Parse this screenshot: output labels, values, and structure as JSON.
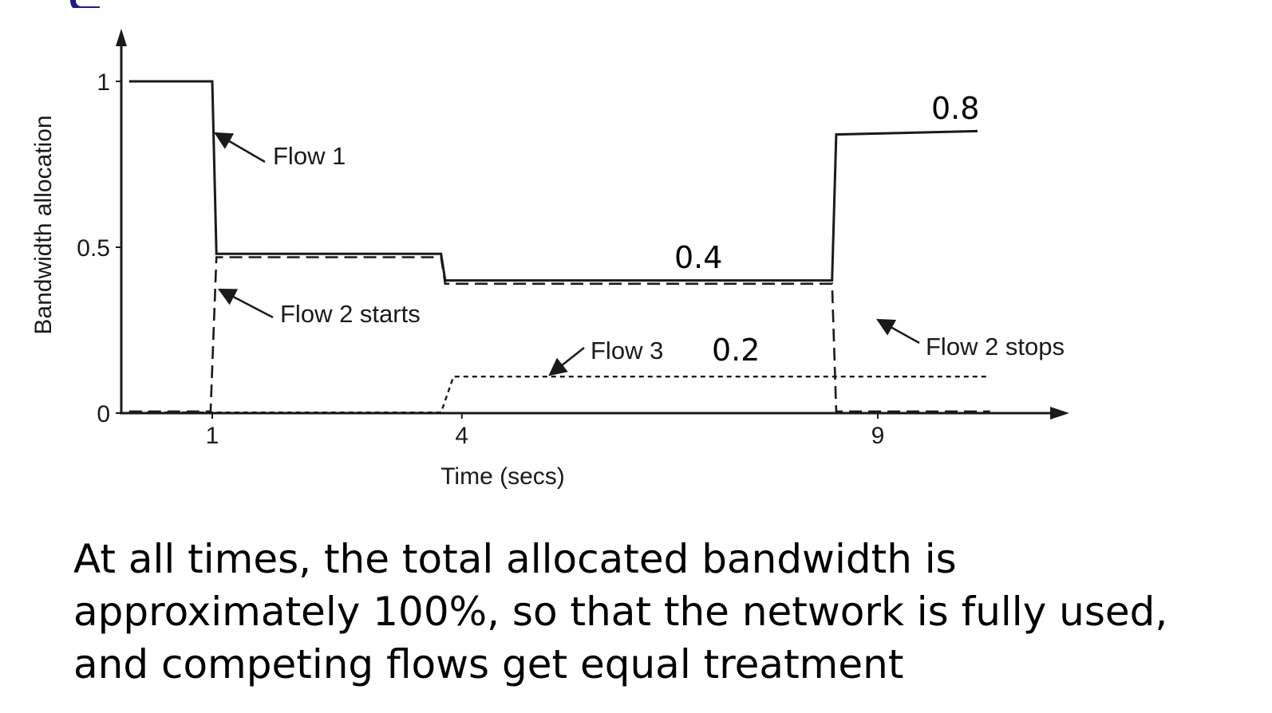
{
  "chart_data": {
    "type": "line",
    "title": "",
    "xlabel": "Time (secs)",
    "ylabel": "Bandwidth allocation",
    "xlim": [
      0,
      10.5
    ],
    "ylim": [
      0,
      1.1
    ],
    "x_ticks": [
      {
        "value": 1,
        "label": "1"
      },
      {
        "value": 4,
        "label": "4"
      },
      {
        "value": 9,
        "label": "9"
      }
    ],
    "y_ticks": [
      {
        "value": 0,
        "label": "0"
      },
      {
        "value": 0.5,
        "label": "0.5"
      },
      {
        "value": 1,
        "label": "1"
      }
    ],
    "grid": false,
    "legend": "none",
    "series": [
      {
        "name": "Flow 1",
        "style": "solid",
        "points": [
          [
            0,
            1
          ],
          [
            1,
            1
          ],
          [
            1.05,
            0.48
          ],
          [
            3.75,
            0.48
          ],
          [
            3.8,
            0.4
          ],
          [
            8.45,
            0.4
          ],
          [
            8.5,
            0.84
          ],
          [
            10.2,
            0.85
          ]
        ]
      },
      {
        "name": "Flow 2",
        "style": "dashed",
        "points": [
          [
            0,
            0.005
          ],
          [
            0.98,
            0.005
          ],
          [
            1.05,
            0.47
          ],
          [
            3.75,
            0.47
          ],
          [
            3.8,
            0.39
          ],
          [
            8.45,
            0.39
          ],
          [
            8.5,
            0.005
          ],
          [
            10.35,
            0.005
          ]
        ]
      },
      {
        "name": "Flow 3",
        "style": "dotted",
        "points": [
          [
            0,
            0.002
          ],
          [
            3.75,
            0.002
          ],
          [
            3.9,
            0.11
          ],
          [
            10.35,
            0.11
          ]
        ]
      }
    ],
    "annotations": [
      {
        "text": "Flow 1",
        "kind": "arrow",
        "target": [
          1.05,
          0.85
        ]
      },
      {
        "text": "Flow 2 starts",
        "kind": "arrow",
        "target": [
          1.08,
          0.38
        ]
      },
      {
        "text": "Flow 3",
        "kind": "arrow",
        "target": [
          4.8,
          0.11
        ]
      },
      {
        "text": "Flow 2 stops",
        "kind": "arrow",
        "target": [
          8.5,
          0.28
        ]
      },
      {
        "text": "0.8",
        "kind": "value-label"
      },
      {
        "text": "0.4",
        "kind": "value-label"
      },
      {
        "text": "0.2",
        "kind": "value-label"
      }
    ]
  },
  "caption": {
    "lines": [
      "At all times, the total allocated bandwidth is",
      "approximately 100%, so that the network is fully used,",
      "and competing flows get equal treatment"
    ]
  },
  "colors": {
    "ink": "#1a1a1a",
    "header_accent": "#1b1b8a"
  }
}
